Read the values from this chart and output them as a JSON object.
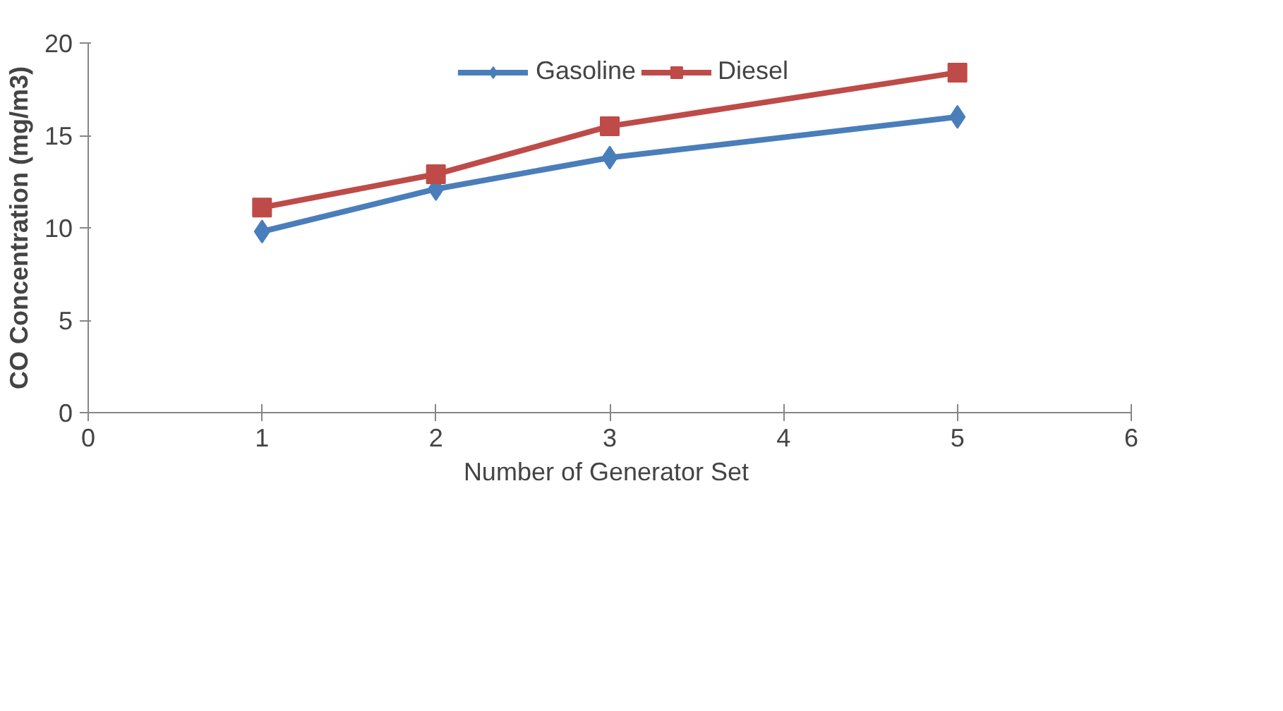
{
  "chart_data": {
    "type": "line",
    "xlabel": "Number of Generator  Set",
    "ylabel": "CO Concentration (mg/m3)",
    "x": [
      1,
      2,
      3,
      5
    ],
    "series": [
      {
        "name": "Gasoline",
        "color": "#4a7ebb",
        "values": [
          9.8,
          12.1,
          13.8,
          16.0
        ],
        "marker": "diamond"
      },
      {
        "name": "Diesel",
        "color": "#be4b48",
        "values": [
          11.1,
          12.9,
          15.5,
          18.4
        ],
        "marker": "square"
      }
    ],
    "xlim": [
      0,
      6
    ],
    "ylim": [
      0,
      20
    ],
    "xticks": [
      0,
      1,
      2,
      3,
      4,
      5,
      6
    ],
    "yticks": [
      0,
      5,
      10,
      15,
      20
    ],
    "grid": false,
    "legend": "top",
    "line_style": "solid"
  }
}
